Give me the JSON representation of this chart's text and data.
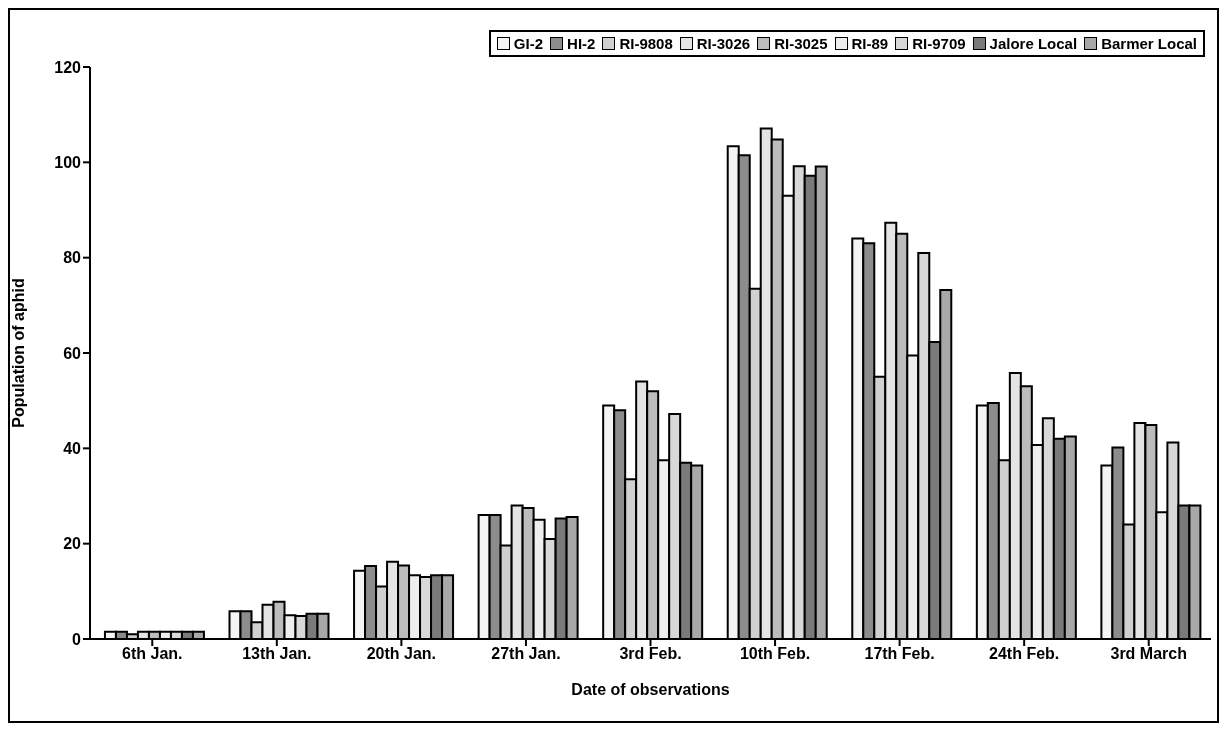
{
  "chart_data": {
    "type": "bar",
    "xlabel": "Date of observations",
    "ylabel": "Population of aphid",
    "categories": [
      "6th Jan.",
      "13th Jan.",
      "20th Jan.",
      "27th Jan.",
      "3rd Feb.",
      "10th Feb.",
      "17th Feb.",
      "24th Feb.",
      "3rd March"
    ],
    "series": [
      {
        "name": "GI-2",
        "color": "#f4f4f4",
        "values": [
          1.5,
          5.8,
          14.3,
          26,
          49,
          103.4,
          84,
          49,
          36.4
        ]
      },
      {
        "name": "HI-2",
        "color": "#8c8c8c",
        "values": [
          1.5,
          5.8,
          15.3,
          26,
          48,
          101.5,
          83,
          49.5,
          40.2
        ]
      },
      {
        "name": "RI-9808",
        "color": "#d0d0d0",
        "values": [
          1,
          3.5,
          11,
          19.6,
          33.5,
          73.5,
          55,
          37.5,
          24
        ]
      },
      {
        "name": "RI-3026",
        "color": "#e4e4e4",
        "values": [
          1.5,
          7.2,
          16.2,
          28,
          54,
          107.1,
          87.3,
          55.8,
          45.3
        ]
      },
      {
        "name": "RI-3025",
        "color": "#bcbcbc",
        "values": [
          1.5,
          7.8,
          15.4,
          27.5,
          52,
          104.8,
          85,
          53,
          44.9
        ]
      },
      {
        "name": "RI-89",
        "color": "#eeeeee",
        "values": [
          1.5,
          5,
          13.4,
          25,
          37.5,
          93,
          59.5,
          40.7,
          26.6
        ]
      },
      {
        "name": "RI-9709",
        "color": "#d8d8d8",
        "values": [
          1.5,
          4.8,
          13,
          21,
          47.2,
          99.2,
          81,
          46.3,
          41.2
        ]
      },
      {
        "name": "Jalore Local",
        "color": "#7a7a7a",
        "values": [
          1.5,
          5.3,
          13.4,
          25.3,
          37,
          97.2,
          62.3,
          42,
          28
        ]
      },
      {
        "name": "Barmer Local",
        "color": "#a8a8a8",
        "values": [
          1.5,
          5.3,
          13.4,
          25.6,
          36.4,
          99.1,
          73.2,
          42.5,
          28
        ]
      }
    ],
    "ylim": [
      0,
      120
    ],
    "yticks": [
      0,
      20,
      40,
      60,
      80,
      100,
      120
    ],
    "grid": false,
    "legend": "top right"
  }
}
